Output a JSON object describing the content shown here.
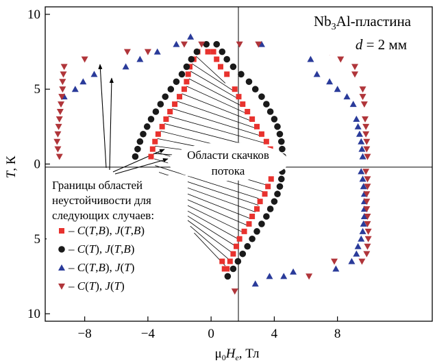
{
  "chart_data": {
    "type": "scatter",
    "annotation": {
      "line1_pre": "Nb",
      "line1_sub": "3",
      "line1_post": "Al-пластина",
      "line2_var": "d",
      "line2_rest": " = 2 мм"
    },
    "region_label": [
      "Области скачков",
      "потока"
    ],
    "legend_title": [
      "Границы областей",
      "неустойчивости для",
      "следующих случаев:"
    ],
    "xlabel_mu": "μ",
    "xlabel_mu_sub": "0",
    "xlabel_H": "H",
    "xlabel_H_sub": "e",
    "xlabel_unit": ", Тл",
    "ylabel_T": "T",
    "ylabel_unit": ", К",
    "xlim": [
      -10.5,
      14
    ],
    "xticks": [
      "−8",
      "−4",
      "0",
      "4",
      "8"
    ],
    "xtick_values": [
      -8,
      -4,
      0,
      4,
      8
    ],
    "yticks_upper": [
      "10",
      "5",
      "0"
    ],
    "yticks_upper_values": [
      10,
      5,
      0
    ],
    "yticks_lower": [
      "5",
      "10"
    ],
    "yticks_lower_values": [
      -5,
      -10
    ],
    "ylim": [
      -10.5,
      10.5
    ],
    "colors": {
      "red": "#e8322e",
      "black": "#1a1a1a",
      "blue": "#2a3b9a",
      "darkred": "#b0353a"
    },
    "series": [
      {
        "marker": "square",
        "color": "#e8322e",
        "label": [
          {
            "t": "– ",
            "i": false
          },
          {
            "t": "C",
            "i": true
          },
          {
            "t": "(",
            "i": false
          },
          {
            "t": "T",
            "i": true
          },
          {
            "t": ",",
            "i": false
          },
          {
            "t": "B",
            "i": true
          },
          {
            "t": "), ",
            "i": false
          },
          {
            "t": "J",
            "i": true
          },
          {
            "t": "(",
            "i": false
          },
          {
            "t": "T",
            "i": true
          },
          {
            "t": ",",
            "i": false
          },
          {
            "t": "B",
            "i": true
          },
          {
            "t": ")",
            "i": false
          }
        ],
        "points": [
          [
            -3.8,
            0.5
          ],
          [
            -3.7,
            1.0
          ],
          [
            -3.55,
            1.5
          ],
          [
            -3.35,
            2.0
          ],
          [
            -3.1,
            2.5
          ],
          [
            -2.85,
            3.0
          ],
          [
            -2.6,
            3.5
          ],
          [
            -2.3,
            4.0
          ],
          [
            -2.0,
            4.5
          ],
          [
            -1.7,
            5.0
          ],
          [
            -1.55,
            5.5
          ],
          [
            -1.45,
            6.0
          ],
          [
            -1.35,
            6.5
          ],
          [
            -1.1,
            7.0
          ],
          [
            -0.85,
            7.5
          ],
          [
            -0.2,
            7.5
          ],
          [
            0.15,
            7.5
          ],
          [
            0.35,
            7.0
          ],
          [
            0.6,
            6.5
          ],
          [
            1.0,
            6.0
          ],
          [
            1.5,
            5.0
          ],
          [
            1.75,
            4.5
          ],
          [
            2.0,
            4.0
          ],
          [
            2.3,
            3.5
          ],
          [
            2.6,
            3.0
          ],
          [
            2.9,
            2.5
          ],
          [
            3.2,
            2.0
          ],
          [
            3.5,
            1.5
          ],
          [
            3.75,
            1.0
          ],
          [
            3.8,
            0.5
          ],
          [
            3.8,
            -0.5
          ],
          [
            3.8,
            -1.0
          ],
          [
            3.6,
            -1.5
          ],
          [
            3.4,
            -2.0
          ],
          [
            3.1,
            -2.5
          ],
          [
            2.9,
            -3.0
          ],
          [
            2.6,
            -3.5
          ],
          [
            2.4,
            -4.0
          ],
          [
            2.1,
            -4.5
          ],
          [
            1.8,
            -5.0
          ],
          [
            1.6,
            -5.5
          ],
          [
            1.4,
            -6.0
          ],
          [
            1.2,
            -6.5
          ],
          [
            1.0,
            -7.0
          ],
          [
            0.85,
            -7.0
          ],
          [
            0.7,
            -6.5
          ]
        ]
      },
      {
        "marker": "circle",
        "color": "#1a1a1a",
        "label": [
          {
            "t": "– ",
            "i": false
          },
          {
            "t": "C",
            "i": true
          },
          {
            "t": "(",
            "i": false
          },
          {
            "t": "T",
            "i": true
          },
          {
            "t": "), ",
            "i": false
          },
          {
            "t": "J",
            "i": true
          },
          {
            "t": "(",
            "i": false
          },
          {
            "t": "T",
            "i": true
          },
          {
            "t": ",",
            "i": false
          },
          {
            "t": "B",
            "i": true
          },
          {
            "t": ")",
            "i": false
          }
        ],
        "points": [
          [
            -4.8,
            0.5
          ],
          [
            -4.65,
            1.0
          ],
          [
            -4.5,
            1.5
          ],
          [
            -4.3,
            2.0
          ],
          [
            -4.05,
            2.5
          ],
          [
            -3.8,
            3.0
          ],
          [
            -3.5,
            3.5
          ],
          [
            -3.2,
            4.0
          ],
          [
            -2.9,
            4.5
          ],
          [
            -2.55,
            5.0
          ],
          [
            -2.2,
            5.5
          ],
          [
            -1.85,
            6.0
          ],
          [
            -1.55,
            6.5
          ],
          [
            -1.25,
            7.0
          ],
          [
            -0.9,
            7.5
          ],
          [
            -0.3,
            8.0
          ],
          [
            0.35,
            8.0
          ],
          [
            0.7,
            7.5
          ],
          [
            1.0,
            7.0
          ],
          [
            1.4,
            6.5
          ],
          [
            1.9,
            6.0
          ],
          [
            2.4,
            5.5
          ],
          [
            2.8,
            5.0
          ],
          [
            3.2,
            4.5
          ],
          [
            3.5,
            4.0
          ],
          [
            3.75,
            3.5
          ],
          [
            4.0,
            3.0
          ],
          [
            4.2,
            2.5
          ],
          [
            4.35,
            2.0
          ],
          [
            4.45,
            1.5
          ],
          [
            4.5,
            1.0
          ],
          [
            4.55,
            0.5
          ],
          [
            4.5,
            -0.5
          ],
          [
            4.45,
            -1.0
          ],
          [
            4.35,
            -1.5
          ],
          [
            4.2,
            -2.0
          ],
          [
            4.0,
            -2.5
          ],
          [
            3.75,
            -3.0
          ],
          [
            3.5,
            -3.5
          ],
          [
            3.2,
            -4.0
          ],
          [
            2.9,
            -4.5
          ],
          [
            2.6,
            -5.0
          ],
          [
            2.3,
            -5.5
          ],
          [
            2.0,
            -6.0
          ],
          [
            1.7,
            -6.5
          ],
          [
            1.4,
            -7.0
          ],
          [
            1.05,
            -7.5
          ]
        ]
      },
      {
        "marker": "triangle-up",
        "color": "#2a3b9a",
        "label": [
          {
            "t": "– ",
            "i": false
          },
          {
            "t": "C",
            "i": true
          },
          {
            "t": "(",
            "i": false
          },
          {
            "t": "T",
            "i": true
          },
          {
            "t": ",",
            "i": false
          },
          {
            "t": "B",
            "i": true
          },
          {
            "t": "), ",
            "i": false
          },
          {
            "t": "J",
            "i": true
          },
          {
            "t": "(",
            "i": false
          },
          {
            "t": "T",
            "i": true
          },
          {
            "t": ")",
            "i": false
          }
        ],
        "points": [
          [
            -9.3,
            4.5
          ],
          [
            -8.6,
            5.0
          ],
          [
            -8.1,
            5.5
          ],
          [
            -7.4,
            6.0
          ],
          [
            -5.4,
            6.5
          ],
          [
            -4.5,
            7.0
          ],
          [
            -3.4,
            7.5
          ],
          [
            -2.2,
            8.0
          ],
          [
            -1.3,
            8.5
          ],
          [
            3.2,
            8.0
          ],
          [
            5.3,
            7.5
          ],
          [
            6.3,
            7.0
          ],
          [
            6.7,
            6.0
          ],
          [
            7.5,
            5.5
          ],
          [
            8.0,
            5.0
          ],
          [
            8.6,
            4.5
          ],
          [
            9.0,
            4.0
          ],
          [
            9.2,
            3.0
          ],
          [
            9.3,
            2.5
          ],
          [
            9.4,
            2.0
          ],
          [
            9.5,
            1.5
          ],
          [
            9.55,
            1.0
          ],
          [
            9.6,
            0.5
          ],
          [
            9.5,
            -0.5
          ],
          [
            9.6,
            -1.0
          ],
          [
            9.65,
            -1.5
          ],
          [
            9.7,
            -2.0
          ],
          [
            9.7,
            -2.5
          ],
          [
            9.7,
            -3.0
          ],
          [
            9.7,
            -3.5
          ],
          [
            9.65,
            -4.0
          ],
          [
            9.6,
            -4.5
          ],
          [
            9.5,
            -5.0
          ],
          [
            9.3,
            -5.5
          ],
          [
            9.2,
            -6.0
          ],
          [
            8.9,
            -6.5
          ],
          [
            7.9,
            -7.0
          ],
          [
            5.2,
            -7.2
          ],
          [
            4.6,
            -7.5
          ],
          [
            3.7,
            -7.5
          ],
          [
            2.8,
            -8.0
          ]
        ]
      },
      {
        "marker": "triangle-down",
        "color": "#b0353a",
        "label": [
          {
            "t": "– ",
            "i": false
          },
          {
            "t": "C",
            "i": true
          },
          {
            "t": "(",
            "i": false
          },
          {
            "t": "T",
            "i": true
          },
          {
            "t": "), ",
            "i": false
          },
          {
            "t": "J",
            "i": true
          },
          {
            "t": "(",
            "i": false
          },
          {
            "t": "T",
            "i": true
          },
          {
            "t": ")",
            "i": false
          }
        ],
        "points": [
          [
            -9.6,
            -2.5
          ],
          [
            -9.5,
            -2.0
          ],
          [
            -9.6,
            0.5
          ],
          [
            -9.7,
            1.0
          ],
          [
            -9.75,
            1.5
          ],
          [
            -9.7,
            2.0
          ],
          [
            -9.65,
            2.5
          ],
          [
            -9.6,
            3.0
          ],
          [
            -9.55,
            3.5
          ],
          [
            -9.5,
            4.0
          ],
          [
            -9.45,
            4.5
          ],
          [
            -9.4,
            5.0
          ],
          [
            -9.4,
            5.5
          ],
          [
            -9.35,
            6.0
          ],
          [
            -9.3,
            6.5
          ],
          [
            -8.0,
            7.0
          ],
          [
            -5.3,
            7.5
          ],
          [
            -4.0,
            7.5
          ],
          [
            -1.7,
            8.0
          ],
          [
            -0.6,
            8.0
          ],
          [
            1.8,
            8.0
          ],
          [
            3.0,
            8.0
          ],
          [
            5.9,
            8.0
          ],
          [
            7.5,
            7.5
          ],
          [
            8.2,
            7.0
          ],
          [
            9.1,
            6.5
          ],
          [
            9.1,
            6.0
          ],
          [
            9.6,
            5.0
          ],
          [
            9.6,
            4.5
          ],
          [
            9.7,
            4.0
          ],
          [
            9.75,
            3.0
          ],
          [
            9.8,
            2.5
          ],
          [
            9.8,
            2.0
          ],
          [
            9.85,
            1.5
          ],
          [
            9.85,
            1.0
          ],
          [
            9.9,
            0.5
          ],
          [
            9.8,
            -0.5
          ],
          [
            9.9,
            -1.0
          ],
          [
            9.9,
            -1.5
          ],
          [
            9.85,
            -2.0
          ],
          [
            9.85,
            -2.5
          ],
          [
            9.85,
            -3.0
          ],
          [
            9.9,
            -3.5
          ],
          [
            9.9,
            -4.0
          ],
          [
            9.95,
            -4.5
          ],
          [
            9.95,
            -5.0
          ],
          [
            9.9,
            -5.5
          ],
          [
            9.85,
            -6.0
          ],
          [
            9.55,
            -6.5
          ],
          [
            7.8,
            -6.5
          ],
          [
            6.2,
            -7.5
          ],
          [
            1.5,
            -8.5
          ]
        ]
      }
    ]
  }
}
